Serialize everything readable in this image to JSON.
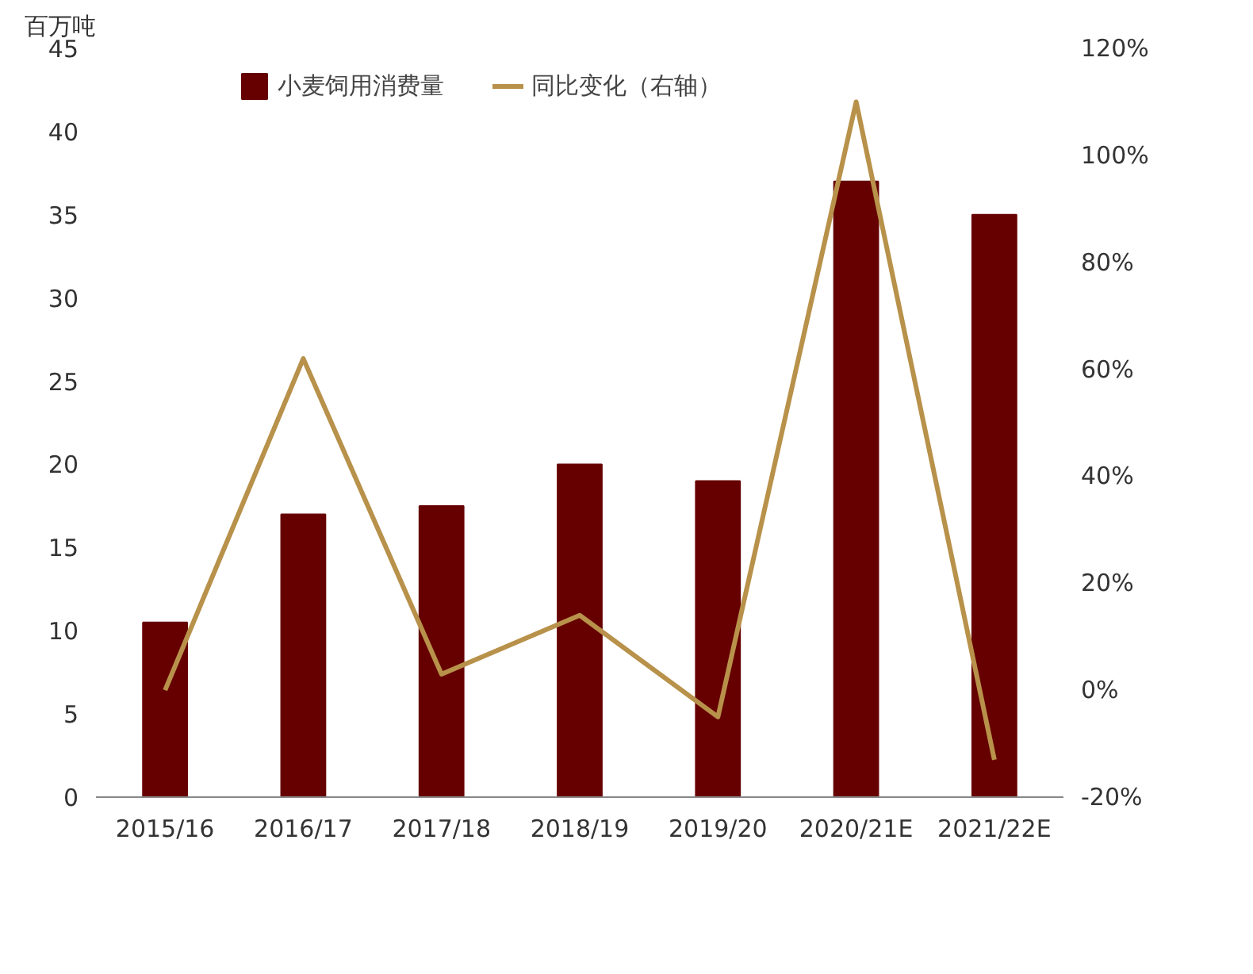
{
  "chart_data": {
    "type": "bar",
    "ylabel": "百万吨",
    "categories": [
      "2015/16",
      "2016/17",
      "2017/18",
      "2018/19",
      "2019/20",
      "2020/21E",
      "2021/22E"
    ],
    "series": [
      {
        "name": "小麦饲用消费量",
        "color": "#660000",
        "values": [
          10.5,
          17,
          17.5,
          20,
          19,
          37,
          35
        ]
      },
      {
        "name": "同比变化（右轴）",
        "type": "line",
        "axis": "y2",
        "color": "#b8914a",
        "values": [
          0,
          62,
          3,
          14,
          -5,
          110,
          -13
        ]
      }
    ],
    "ylim": [
      0,
      45
    ],
    "yticks": [
      0,
      5,
      10,
      15,
      20,
      25,
      30,
      35,
      40,
      45
    ],
    "y2lim": [
      -20,
      120
    ],
    "y2ticks": [
      {
        "value": -20,
        "label": "-20%"
      },
      {
        "value": 0,
        "label": "0%"
      },
      {
        "value": 20,
        "label": "20%"
      },
      {
        "value": 40,
        "label": "40%"
      },
      {
        "value": 60,
        "label": "60%"
      },
      {
        "value": 80,
        "label": "80%"
      },
      {
        "value": 100,
        "label": "100%"
      },
      {
        "value": 120,
        "label": "120%"
      }
    ],
    "grid": false,
    "legend": "top"
  }
}
